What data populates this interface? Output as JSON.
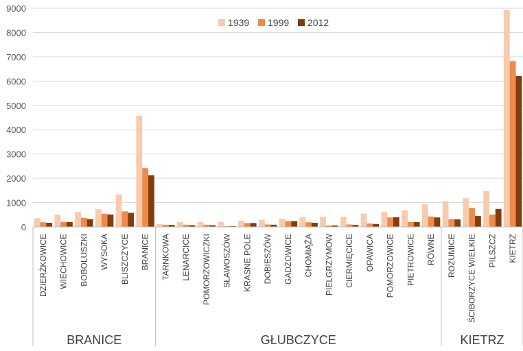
{
  "chart_data": {
    "type": "bar",
    "title": "",
    "xlabel": "",
    "ylabel": "",
    "ylim": [
      0,
      9000
    ],
    "yticks": [
      0,
      1000,
      2000,
      3000,
      4000,
      5000,
      6000,
      7000,
      8000,
      9000
    ],
    "grid": true,
    "legend_position": "top-center",
    "categories": [
      "DZIERŻKOWICE",
      "WIECHOWICE",
      "BOBOLUSZKI",
      "WYSOKA",
      "BLISZCZYCE",
      "BRANICE",
      "TARNKOWA",
      "LENARCICE",
      "POMORZOWICZKI",
      "SŁAWOSZÓW",
      "KRASNE POLE",
      "DOBIESZÓW",
      "GADZOWICE",
      "CHOMIĄŻA",
      "PIELGRZYMÓW",
      "CIERMIĘCICE",
      "OPAWICA",
      "POMORZOWICE",
      "PIETROWICE",
      "RÓWNE",
      "ROZUMICE",
      "ŚCIBORZYCE WIELKIE",
      "PILSZCZ",
      "KIETRZ"
    ],
    "groups": [
      {
        "name": "BRANICE",
        "start": 0,
        "end": 5
      },
      {
        "name": "GŁUBCZYCE",
        "start": 6,
        "end": 19
      },
      {
        "name": "KIETRZ",
        "start": 20,
        "end": 23
      }
    ],
    "series": [
      {
        "name": "1939",
        "color": "#f8cbad",
        "values": [
          360,
          510,
          610,
          730,
          1340,
          4580,
          120,
          200,
          200,
          200,
          260,
          290,
          340,
          400,
          420,
          420,
          550,
          610,
          680,
          930,
          1060,
          1180,
          1480,
          8920
        ]
      },
      {
        "name": "1999",
        "color": "#ed8b4c",
        "values": [
          190,
          210,
          370,
          540,
          640,
          2420,
          90,
          90,
          90,
          30,
          160,
          100,
          240,
          190,
          60,
          100,
          140,
          390,
          200,
          430,
          320,
          780,
          510,
          6820
        ]
      },
      {
        "name": "2012",
        "color": "#843c0c",
        "values": [
          170,
          200,
          320,
          510,
          580,
          2130,
          80,
          70,
          70,
          30,
          160,
          90,
          240,
          170,
          60,
          80,
          120,
          400,
          200,
          390,
          310,
          450,
          740,
          6210
        ]
      }
    ]
  }
}
